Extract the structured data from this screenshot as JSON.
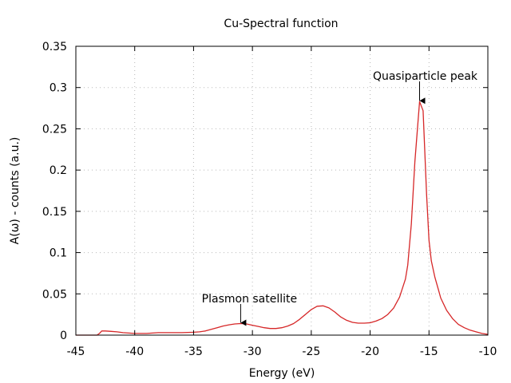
{
  "chart_data": {
    "type": "line",
    "title": "Cu-Spectral function",
    "xlabel": "Energy (eV)",
    "ylabel": "A(ω) - counts (a.u.)",
    "xlim": [
      -45,
      -10
    ],
    "ylim": [
      0,
      0.35
    ],
    "xticks": [
      -45,
      -40,
      -35,
      -30,
      -25,
      -20,
      -15,
      -10
    ],
    "xtick_labels": [
      "-45",
      "-40",
      "-35",
      "-30",
      "-25",
      "-20",
      "-15",
      "-10"
    ],
    "yticks": [
      0,
      0.05,
      0.1,
      0.15,
      0.2,
      0.25,
      0.3,
      0.35
    ],
    "ytick_labels": [
      "0",
      "0.05",
      "0.1",
      "0.15",
      "0.2",
      "0.25",
      "0.3",
      "0.35"
    ],
    "grid": true,
    "legend": "none",
    "series": [
      {
        "color": "#d62728",
        "x": [
          -45,
          -43.2,
          -43,
          -42.8,
          -42.5,
          -42,
          -41.5,
          -41,
          -40.5,
          -40,
          -39.5,
          -39,
          -38.5,
          -38,
          -37,
          -36,
          -35,
          -34.5,
          -34,
          -33.5,
          -33,
          -32.5,
          -32,
          -31.5,
          -31,
          -30.5,
          -30,
          -29.5,
          -29,
          -28.5,
          -28,
          -27.5,
          -27,
          -26.5,
          -26,
          -25.5,
          -25,
          -24.5,
          -24,
          -23.5,
          -23,
          -22.5,
          -22,
          -21.5,
          -21,
          -20.5,
          -20,
          -19.5,
          -19,
          -18.5,
          -18,
          -17.5,
          -17,
          -16.8,
          -16.5,
          -16.2,
          -15.8,
          -15.5,
          -15.2,
          -15,
          -14.8,
          -14.5,
          -14.2,
          -14,
          -13.5,
          -13,
          -12.5,
          -12,
          -11.5,
          -11,
          -10.5,
          -10
        ],
        "y": [
          0,
          0,
          0.002,
          0.005,
          0.005,
          0.0045,
          0.004,
          0.003,
          0.0025,
          0.002,
          0.002,
          0.002,
          0.0025,
          0.003,
          0.003,
          0.003,
          0.0035,
          0.004,
          0.005,
          0.007,
          0.009,
          0.011,
          0.0125,
          0.0135,
          0.014,
          0.0135,
          0.012,
          0.0105,
          0.009,
          0.008,
          0.008,
          0.009,
          0.011,
          0.014,
          0.019,
          0.025,
          0.031,
          0.035,
          0.0355,
          0.033,
          0.028,
          0.022,
          0.018,
          0.0155,
          0.0145,
          0.0145,
          0.015,
          0.017,
          0.02,
          0.025,
          0.033,
          0.046,
          0.068,
          0.085,
          0.135,
          0.21,
          0.283,
          0.272,
          0.17,
          0.115,
          0.09,
          0.07,
          0.055,
          0.045,
          0.03,
          0.02,
          0.013,
          0.009,
          0.006,
          0.004,
          0.002,
          0.001
        ]
      }
    ],
    "annotations": [
      {
        "text": "Quasiparticle peak",
        "x": -15.8,
        "y": 0.283
      },
      {
        "text": "Plasmon satellite",
        "x": -31,
        "y": 0.014
      }
    ]
  }
}
